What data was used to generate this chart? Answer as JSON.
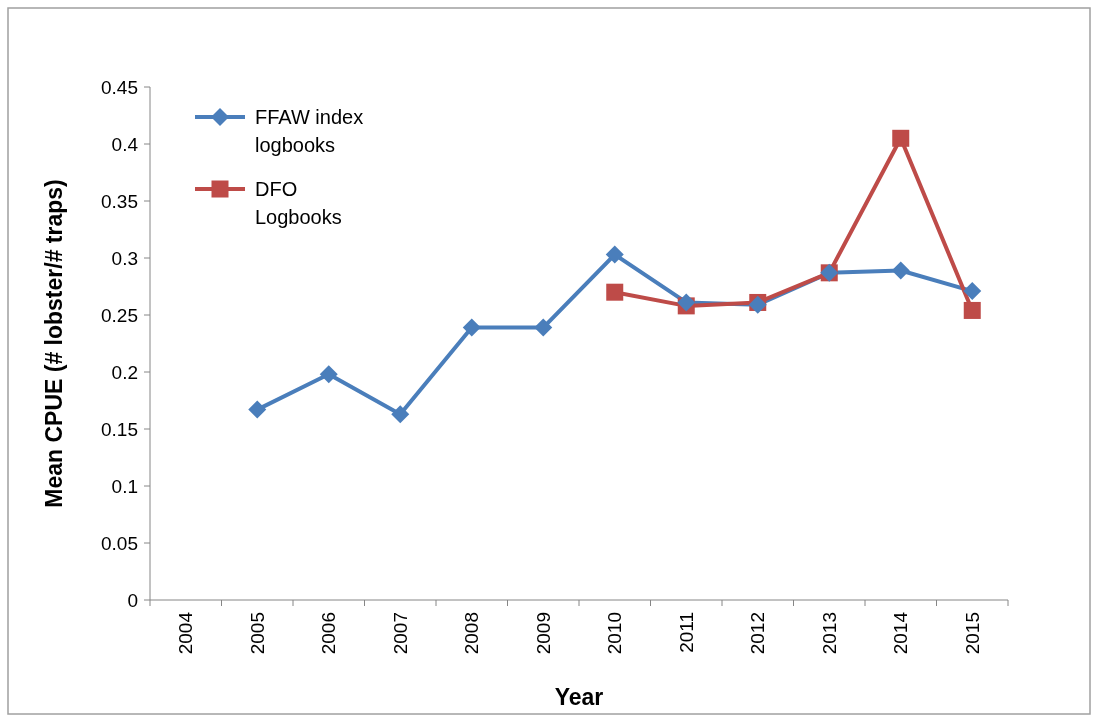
{
  "chart_data": {
    "type": "line",
    "xlabel": "Year",
    "ylabel": "Mean CPUE (# lobster/# traps)",
    "categories": [
      "2004",
      "2005",
      "2006",
      "2007",
      "2008",
      "2009",
      "2010",
      "2011",
      "2012",
      "2013",
      "2014",
      "2015"
    ],
    "series": [
      {
        "name": "FFAW index logbooks",
        "color": "#4a7ebb",
        "marker": "diamond",
        "values": [
          null,
          0.167,
          0.198,
          0.163,
          0.239,
          0.239,
          0.303,
          0.261,
          0.259,
          0.287,
          0.289,
          0.271
        ]
      },
      {
        "name": "DFO Logbooks",
        "color": "#be4b48",
        "marker": "square",
        "values": [
          null,
          null,
          null,
          null,
          null,
          null,
          0.27,
          0.258,
          0.261,
          0.287,
          0.405,
          0.254
        ]
      }
    ],
    "ylim": [
      0,
      0.45
    ],
    "yticks": [
      0,
      0.05,
      0.1,
      0.15,
      0.2,
      0.25,
      0.3,
      0.35,
      0.4,
      0.45
    ],
    "grid": false,
    "legend": "top left"
  }
}
